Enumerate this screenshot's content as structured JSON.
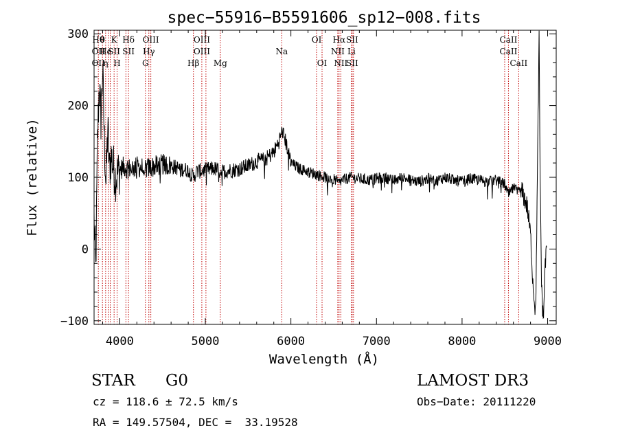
{
  "chart_data": {
    "type": "line",
    "title": "spec−55916−B5591606_sp12−008.fits",
    "xlabel": "Wavelength (Å)",
    "ylabel": "Flux (relative)",
    "xlim": [
      3700,
      9100
    ],
    "ylim": [
      -105,
      305
    ],
    "x_ticks": [
      4000,
      5000,
      6000,
      7000,
      8000,
      9000
    ],
    "y_ticks": [
      -100,
      0,
      100,
      200,
      300
    ],
    "series": [
      {
        "name": "flux",
        "anchors": [
          [
            3700,
            40
          ],
          [
            3720,
            -30
          ],
          [
            3740,
            150
          ],
          [
            3760,
            230
          ],
          [
            3780,
            180
          ],
          [
            3800,
            250
          ],
          [
            3820,
            150
          ],
          [
            3840,
            90
          ],
          [
            3860,
            170
          ],
          [
            3880,
            110
          ],
          [
            3900,
            130
          ],
          [
            3950,
            100
          ],
          [
            4000,
            110
          ],
          [
            4050,
            115
          ],
          [
            4100,
            112
          ],
          [
            4200,
            115
          ],
          [
            4300,
            112
          ],
          [
            4400,
            115
          ],
          [
            4500,
            118
          ],
          [
            4600,
            116
          ],
          [
            4700,
            112
          ],
          [
            4800,
            110
          ],
          [
            4860,
            100
          ],
          [
            4900,
            108
          ],
          [
            5000,
            110
          ],
          [
            5100,
            112
          ],
          [
            5200,
            108
          ],
          [
            5300,
            110
          ],
          [
            5400,
            112
          ],
          [
            5500,
            116
          ],
          [
            5600,
            122
          ],
          [
            5700,
            125
          ],
          [
            5800,
            135
          ],
          [
            5860,
            150
          ],
          [
            5900,
            165
          ],
          [
            5950,
            145
          ],
          [
            6000,
            120
          ],
          [
            6100,
            112
          ],
          [
            6200,
            108
          ],
          [
            6300,
            104
          ],
          [
            6400,
            100
          ],
          [
            6500,
            98
          ],
          [
            6560,
            92
          ],
          [
            6600,
            96
          ],
          [
            6700,
            100
          ],
          [
            6800,
            98
          ],
          [
            6900,
            96
          ],
          [
            7000,
            98
          ],
          [
            7100,
            100
          ],
          [
            7200,
            95
          ],
          [
            7300,
            100
          ],
          [
            7400,
            96
          ],
          [
            7500,
            94
          ],
          [
            7600,
            98
          ],
          [
            7700,
            95
          ],
          [
            7800,
            100
          ],
          [
            7900,
            96
          ],
          [
            8000,
            94
          ],
          [
            8100,
            98
          ],
          [
            8200,
            96
          ],
          [
            8300,
            94
          ],
          [
            8400,
            96
          ],
          [
            8500,
            90
          ],
          [
            8540,
            75
          ],
          [
            8600,
            85
          ],
          [
            8660,
            78
          ],
          [
            8700,
            80
          ],
          [
            8760,
            60
          ],
          [
            8800,
            20
          ],
          [
            8830,
            -50
          ],
          [
            8860,
            -90
          ],
          [
            8880,
            100
          ],
          [
            8900,
            295
          ],
          [
            8910,
            120
          ],
          [
            8930,
            -60
          ],
          [
            8950,
            -100
          ],
          [
            8970,
            -20
          ],
          [
            8990,
            0
          ]
        ]
      }
    ],
    "lines": [
      {
        "x": 3750,
        "labels": [
          "Hθ",
          "OII",
          "OII"
        ]
      },
      {
        "x": 3798,
        "labels": [
          "θ",
          "",
          ""
        ]
      },
      {
        "x": 3835,
        "labels": [
          "",
          "He",
          "η"
        ]
      },
      {
        "x": 3869,
        "labels": [
          "",
          "",
          ""
        ]
      },
      {
        "x": 3889,
        "labels": [
          "",
          "",
          ""
        ]
      },
      {
        "x": 3934,
        "labels": [
          "K",
          "SII",
          ""
        ]
      },
      {
        "x": 3969,
        "labels": [
          "",
          "",
          "H"
        ]
      },
      {
        "x": 4072,
        "labels": [
          "",
          "",
          ""
        ]
      },
      {
        "x": 4102,
        "labels": [
          "Hδ",
          "SII",
          ""
        ]
      },
      {
        "x": 4300,
        "labels": [
          "",
          "",
          "G"
        ]
      },
      {
        "x": 4340,
        "labels": [
          "",
          "Hγ",
          ""
        ]
      },
      {
        "x": 4363,
        "labels": [
          "OIII",
          "",
          ""
        ]
      },
      {
        "x": 4861,
        "labels": [
          "",
          "",
          "Hβ"
        ]
      },
      {
        "x": 4959,
        "labels": [
          "OIII",
          "OIII",
          ""
        ]
      },
      {
        "x": 5007,
        "labels": [
          "",
          "",
          ""
        ]
      },
      {
        "x": 5175,
        "labels": [
          "",
          "",
          "Mg"
        ]
      },
      {
        "x": 5893,
        "labels": [
          "",
          "Na",
          ""
        ]
      },
      {
        "x": 6300,
        "labels": [
          "OI",
          "",
          ""
        ]
      },
      {
        "x": 6364,
        "labels": [
          "",
          "",
          "OI"
        ]
      },
      {
        "x": 6548,
        "labels": [
          "",
          "NII",
          ""
        ]
      },
      {
        "x": 6563,
        "labels": [
          "Hα",
          "",
          ""
        ]
      },
      {
        "x": 6583,
        "labels": [
          "",
          "",
          "NII"
        ]
      },
      {
        "x": 6708,
        "labels": [
          "",
          "Li",
          ""
        ]
      },
      {
        "x": 6716,
        "labels": [
          "SII",
          "",
          "SII"
        ]
      },
      {
        "x": 6731,
        "labels": [
          "",
          "",
          ""
        ]
      },
      {
        "x": 8498,
        "labels": [
          "",
          "",
          ""
        ]
      },
      {
        "x": 8542,
        "labels": [
          "CaII",
          "CaII",
          ""
        ]
      },
      {
        "x": 8662,
        "labels": [
          "",
          "",
          "CaII"
        ]
      }
    ]
  },
  "info": {
    "class": "STAR",
    "subclass": "G0",
    "survey": "LAMOST DR3",
    "cz": "cz = 118.6 ± 72.5 km/s",
    "obs_date": "Obs−Date: 20111220",
    "radec": "RA = 149.57504, DEC =  33.19528"
  }
}
